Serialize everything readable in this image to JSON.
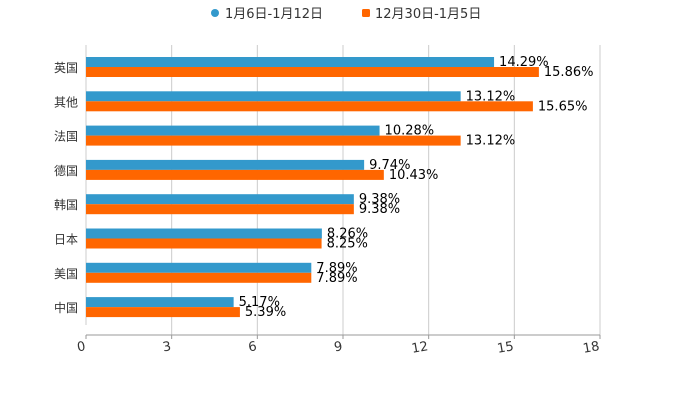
{
  "chart_data": {
    "type": "bar",
    "orientation": "horizontal",
    "categories": [
      "英国",
      "其他",
      "法国",
      "德国",
      "韩国",
      "日本",
      "美国",
      "中国"
    ],
    "series": [
      {
        "name": "1月6日-1月12日",
        "color": "#3399cc",
        "values": [
          14.29,
          13.12,
          10.28,
          9.74,
          9.38,
          8.26,
          7.89,
          5.17
        ],
        "labels": [
          "14.29%",
          "13.12%",
          "10.28%",
          "9.74%",
          "9.38%",
          "8.26%",
          "7.89%",
          "5.17%"
        ]
      },
      {
        "name": "12月30日-1月5日",
        "color": "#ff6600",
        "values": [
          15.86,
          15.65,
          13.12,
          10.43,
          9.38,
          8.25,
          7.89,
          5.39
        ],
        "labels": [
          "15.86%",
          "15.65%",
          "13.12%",
          "10.43%",
          "9.38%",
          "8.25%",
          "7.89%",
          "5.39%"
        ]
      }
    ],
    "xlim": [
      0,
      18
    ],
    "xticks": [
      "0",
      "3",
      "6",
      "9",
      "12",
      "15",
      "18"
    ],
    "grid": true,
    "legend": "top-center",
    "title": "",
    "xlabel": "",
    "ylabel": ""
  }
}
